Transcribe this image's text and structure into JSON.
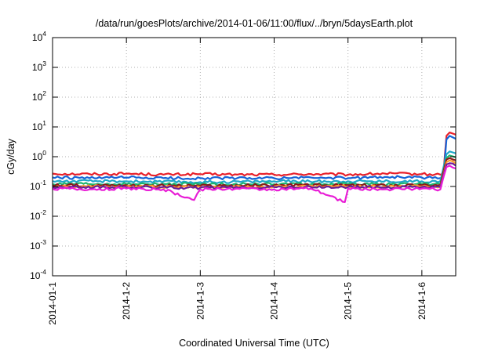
{
  "chart_data": {
    "type": "line",
    "title": "/data/run/goesPlots/archive/2014-01-06/11:00/flux/../bryn/5daysEarth.plot",
    "xlabel": "Coordinated Universal Time (UTC)",
    "ylabel": "cGy/day",
    "yscale": "log",
    "ylim": [
      0.0001,
      10000
    ],
    "y_ticks": [
      {
        "base": "10",
        "exp": "-4",
        "value": 0.0001
      },
      {
        "base": "10",
        "exp": "-3",
        "value": 0.001
      },
      {
        "base": "10",
        "exp": "-2",
        "value": 0.01
      },
      {
        "base": "10",
        "exp": "-1",
        "value": 0.1
      },
      {
        "base": "10",
        "exp": "0",
        "value": 1
      },
      {
        "base": "10",
        "exp": "1",
        "value": 10
      },
      {
        "base": "10",
        "exp": "2",
        "value": 100
      },
      {
        "base": "10",
        "exp": "3",
        "value": 1000
      },
      {
        "base": "10",
        "exp": "4",
        "value": 10000
      }
    ],
    "x_ticks": [
      "2014-01-1",
      "2014-1-2",
      "2014-1-3",
      "2014-1-4",
      "2014-1-5",
      "2014-1-6"
    ],
    "xlim": [
      "2014-01-01T00:00",
      "2014-01-06T11:00"
    ],
    "grid": true,
    "series": [
      {
        "color": "#e8202a",
        "x": [
          "2014-01-01T00:00",
          "2014-01-01T12:00",
          "2014-01-02T00:00",
          "2014-01-02T12:00",
          "2014-01-03T00:00",
          "2014-01-03T12:00",
          "2014-01-04T00:00",
          "2014-01-04T12:00",
          "2014-01-05T00:00",
          "2014-01-05T12:00",
          "2014-01-06T00:00",
          "2014-01-06T06:00",
          "2014-01-06T07:00",
          "2014-01-06T08:00",
          "2014-01-06T09:00",
          "2014-01-06T10:00",
          "2014-01-06T11:00"
        ],
        "y": [
          0.27,
          0.26,
          0.27,
          0.25,
          0.26,
          0.25,
          0.25,
          0.26,
          0.25,
          0.27,
          0.26,
          0.25,
          0.27,
          5.0,
          6.5,
          6.0,
          5.5
        ]
      },
      {
        "color": "#1565d8",
        "x": [
          "2014-01-01T00:00",
          "2014-01-01T12:00",
          "2014-01-02T00:00",
          "2014-01-02T12:00",
          "2014-01-03T00:00",
          "2014-01-03T12:00",
          "2014-01-04T00:00",
          "2014-01-04T12:00",
          "2014-01-05T00:00",
          "2014-01-05T12:00",
          "2014-01-06T00:00",
          "2014-01-06T06:00",
          "2014-01-06T07:00",
          "2014-01-06T08:00",
          "2014-01-06T09:00",
          "2014-01-06T10:00",
          "2014-01-06T11:00"
        ],
        "y": [
          0.2,
          0.19,
          0.2,
          0.19,
          0.19,
          0.19,
          0.19,
          0.2,
          0.19,
          0.21,
          0.2,
          0.19,
          0.2,
          3.8,
          5.0,
          4.5,
          4.0
        ]
      },
      {
        "color": "#1ea7c8",
        "x": [
          "2014-01-01T00:00",
          "2014-01-02T00:00",
          "2014-01-03T00:00",
          "2014-01-04T00:00",
          "2014-01-05T00:00",
          "2014-01-06T00:00",
          "2014-01-06T06:00",
          "2014-01-06T08:00",
          "2014-01-06T09:00",
          "2014-01-06T11:00"
        ],
        "y": [
          0.15,
          0.15,
          0.14,
          0.15,
          0.15,
          0.15,
          0.15,
          1.2,
          1.5,
          1.3
        ]
      },
      {
        "color": "#1fb46e",
        "x": [
          "2014-01-01T00:00",
          "2014-01-02T00:00",
          "2014-01-03T00:00",
          "2014-01-04T00:00",
          "2014-01-05T00:00",
          "2014-01-06T00:00",
          "2014-01-06T06:00",
          "2014-01-06T08:00",
          "2014-01-06T09:00",
          "2014-01-06T11:00"
        ],
        "y": [
          0.12,
          0.12,
          0.12,
          0.12,
          0.12,
          0.12,
          0.12,
          0.9,
          1.1,
          0.95
        ]
      },
      {
        "color": "#8b1a1a",
        "x": [
          "2014-01-01T00:00",
          "2014-01-02T00:00",
          "2014-01-03T00:00",
          "2014-01-04T00:00",
          "2014-01-05T00:00",
          "2014-01-06T00:00",
          "2014-01-06T06:00",
          "2014-01-06T08:00",
          "2014-01-06T09:00",
          "2014-01-06T11:00"
        ],
        "y": [
          0.11,
          0.11,
          0.105,
          0.11,
          0.11,
          0.11,
          0.11,
          0.8,
          0.9,
          0.75
        ]
      },
      {
        "color": "#ff9b2a",
        "x": [
          "2014-01-01T00:00",
          "2014-01-02T00:00",
          "2014-01-03T00:00",
          "2014-01-04T00:00",
          "2014-01-05T00:00",
          "2014-01-06T00:00",
          "2014-01-06T06:00",
          "2014-01-06T08:00",
          "2014-01-06T09:00",
          "2014-01-06T11:00"
        ],
        "y": [
          0.1,
          0.1,
          0.095,
          0.1,
          0.1,
          0.1,
          0.1,
          0.65,
          0.75,
          0.6
        ]
      },
      {
        "color": "#6a1b9a",
        "x": [
          "2014-01-01T00:00",
          "2014-01-02T00:00",
          "2014-01-03T00:00",
          "2014-01-04T00:00",
          "2014-01-05T00:00",
          "2014-01-06T00:00",
          "2014-01-06T06:00",
          "2014-01-06T08:00",
          "2014-01-06T09:00",
          "2014-01-06T11:00"
        ],
        "y": [
          0.095,
          0.095,
          0.09,
          0.095,
          0.095,
          0.095,
          0.095,
          0.55,
          0.6,
          0.5
        ]
      },
      {
        "color": "#e81ed6",
        "x": [
          "2014-01-01T00:00",
          "2014-01-01T12:00",
          "2014-01-02T00:00",
          "2014-01-02T12:00",
          "2014-01-02T22:00",
          "2014-01-03T00:00",
          "2014-01-03T12:00",
          "2014-01-04T00:00",
          "2014-01-04T12:00",
          "2014-01-04T23:00",
          "2014-01-05T00:00",
          "2014-01-05T12:00",
          "2014-01-06T00:00",
          "2014-01-06T06:00",
          "2014-01-06T08:00",
          "2014-01-06T09:00",
          "2014-01-06T11:00"
        ],
        "y": [
          0.085,
          0.08,
          0.085,
          0.08,
          0.035,
          0.08,
          0.085,
          0.08,
          0.085,
          0.03,
          0.085,
          0.08,
          0.085,
          0.08,
          0.45,
          0.5,
          0.4
        ]
      }
    ]
  }
}
